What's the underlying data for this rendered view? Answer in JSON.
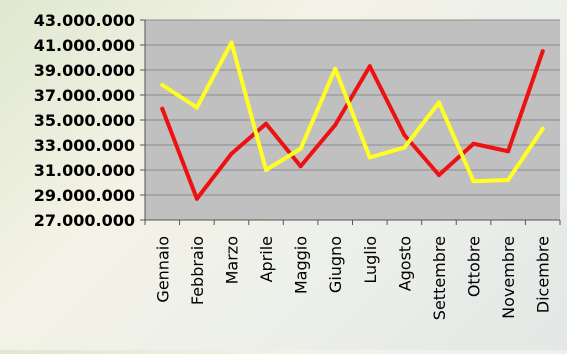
{
  "chart_data": {
    "type": "line",
    "title": "",
    "xlabel": "",
    "ylabel": "",
    "categories": [
      "Gennaio",
      "Febbraio",
      "Marzo",
      "Aprile",
      "Maggio",
      "Giugno",
      "Luglio",
      "Agosto",
      "Settembre",
      "Ottobre",
      "Novembre",
      "Dicembre"
    ],
    "yticks": [
      "27.000.000",
      "29.000.000",
      "31.000.000",
      "33.000.000",
      "35.000.000",
      "37.000.000",
      "39.000.000",
      "41.000.000",
      "43.000.000"
    ],
    "ylim": [
      27000000,
      43000000
    ],
    "grid": true,
    "legend": "none",
    "series": [
      {
        "color": "#ee1111",
        "values": [
          35900000,
          28700000,
          32300000,
          34700000,
          31300000,
          34600000,
          39300000,
          33800000,
          30600000,
          33100000,
          32500000,
          40500000
        ]
      },
      {
        "color": "#ffff22",
        "values": [
          37800000,
          36000000,
          41200000,
          31000000,
          32700000,
          39100000,
          32000000,
          32800000,
          36400000,
          30100000,
          30200000,
          34300000
        ]
      }
    ],
    "colors": {
      "plot_background": "#c0c0c0",
      "gridline": "#8c8c8c",
      "axis": "#555555",
      "label": "#000000"
    }
  }
}
